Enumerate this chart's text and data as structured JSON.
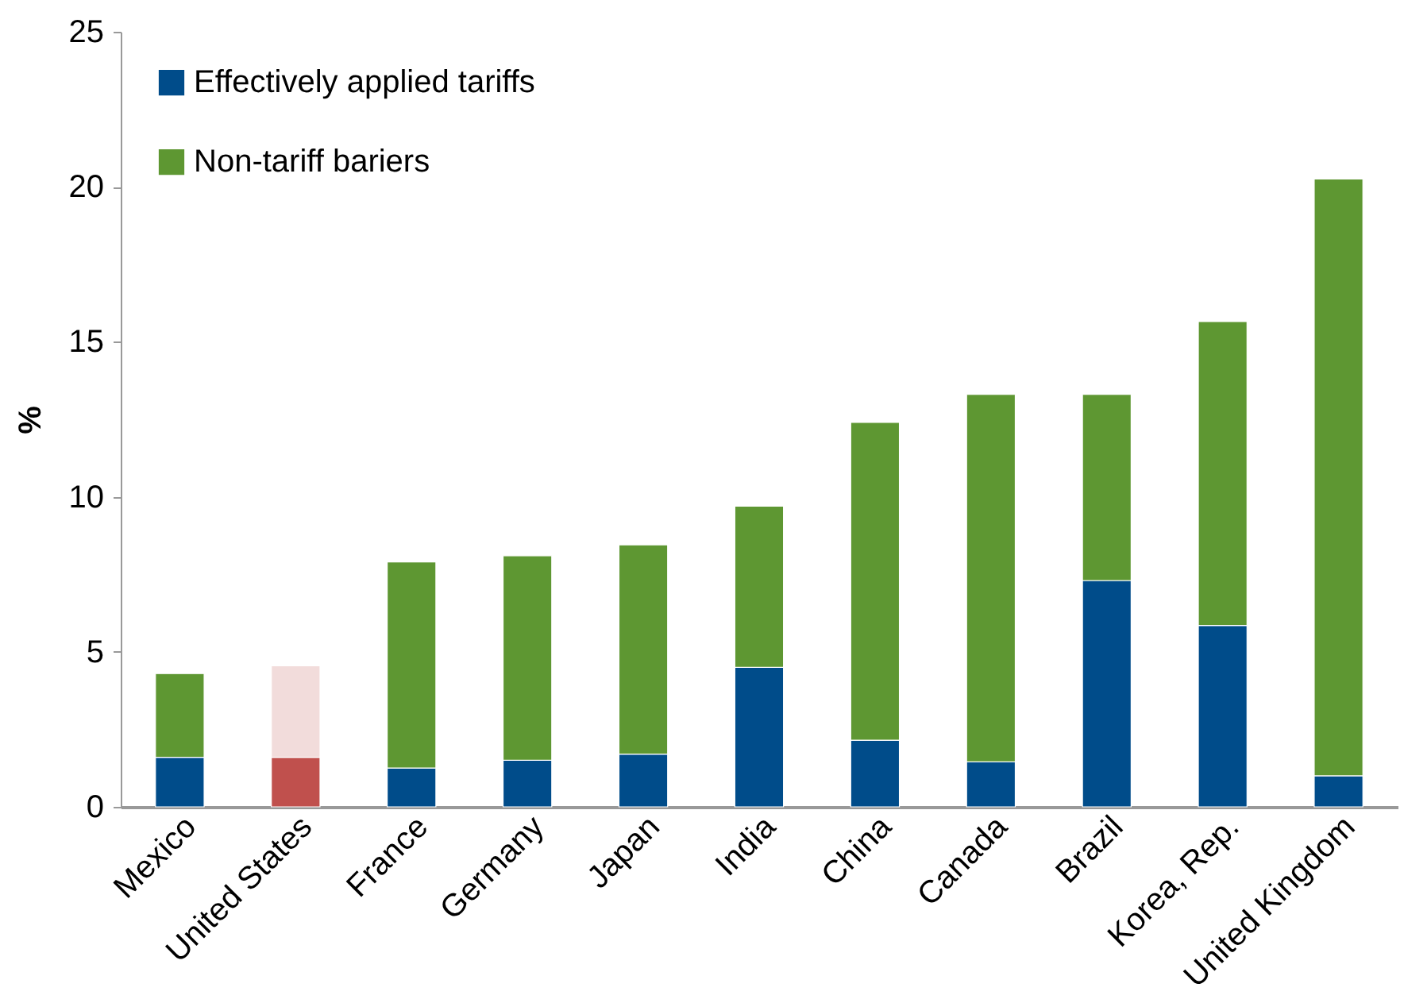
{
  "chart_data": {
    "type": "bar",
    "ylabel": "%",
    "stacked": true,
    "legend": "top left",
    "grid": false,
    "categories": [
      "Mexico",
      "United States",
      "France",
      "Germany",
      "Japan",
      "India",
      "China",
      "Canada",
      "Brazil",
      "Korea, Rep.",
      "United Kingdom"
    ],
    "ylim": [
      0,
      25
    ],
    "yticks": [
      0,
      5,
      10,
      15,
      20,
      25
    ],
    "series": [
      {
        "name": "Effectively applied tariffs",
        "color": "#004c8a",
        "colors": [
          "#004c8a",
          "#c0504d",
          "#004c8a",
          "#004c8a",
          "#004c8a",
          "#004c8a",
          "#004c8a",
          "#004c8a",
          "#004c8a",
          "#004c8a",
          "#004c8a"
        ],
        "values": [
          1.6,
          1.6,
          1.25,
          1.5,
          1.7,
          4.5,
          2.15,
          1.45,
          7.3,
          5.85,
          1.0
        ]
      },
      {
        "name": "Non-tariff bariers",
        "color": "#5e9732",
        "colors": [
          "#5e9732",
          "#f2dcdb",
          "#5e9732",
          "#5e9732",
          "#5e9732",
          "#5e9732",
          "#5e9732",
          "#5e9732",
          "#5e9732",
          "#5e9732",
          "#5e9732"
        ],
        "values": [
          2.7,
          2.95,
          6.65,
          6.6,
          6.75,
          5.2,
          10.25,
          11.85,
          6.0,
          9.8,
          19.25
        ]
      }
    ]
  }
}
